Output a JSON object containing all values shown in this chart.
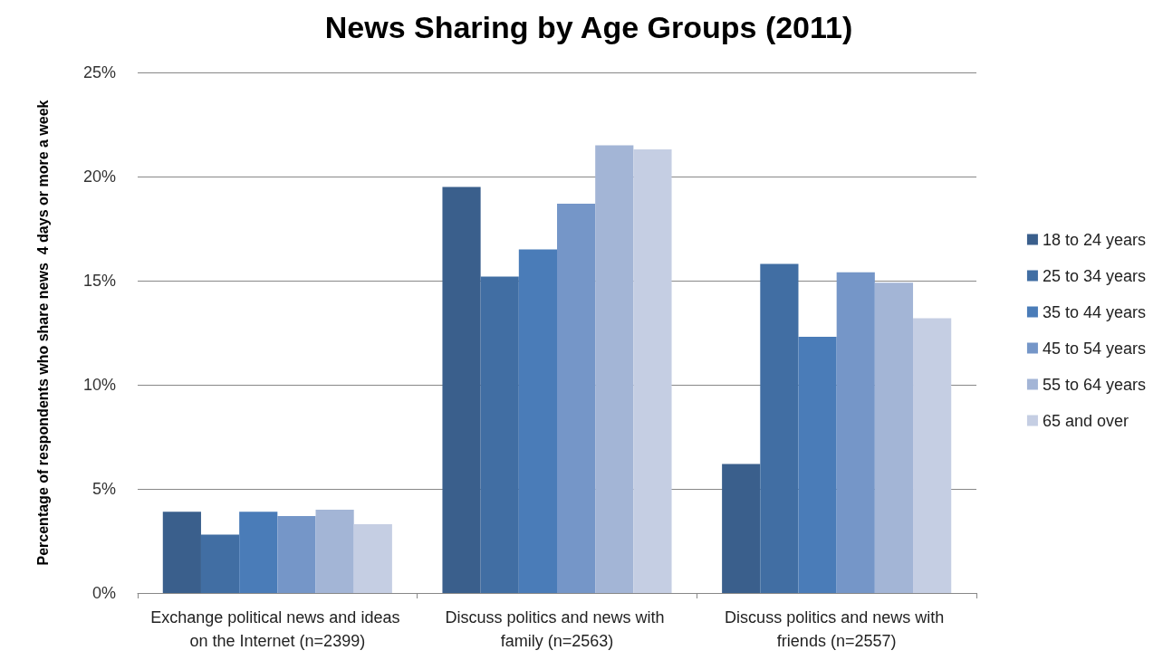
{
  "chart_data": {
    "type": "bar",
    "title": "News Sharing by Age Groups (2011)",
    "ylabel": "Percentage of respondents who share news  4 days or more a week",
    "categories": [
      "Exchange political news and ideas on the Internet (n=2399)",
      "Discuss politics and news with family (n=2563)",
      "Discuss politics and news with friends (n=2557)"
    ],
    "series": [
      {
        "name": "18 to 24 years",
        "color": "#3a5f8c",
        "values": [
          3.9,
          19.5,
          6.2
        ]
      },
      {
        "name": "25 to 34 years",
        "color": "#416ea3",
        "values": [
          2.8,
          15.2,
          15.8
        ]
      },
      {
        "name": "35 to 44 years",
        "color": "#4a7cb8",
        "values": [
          3.9,
          16.5,
          12.3
        ]
      },
      {
        "name": "45 to 54 years",
        "color": "#7596c8",
        "values": [
          3.7,
          18.7,
          15.4
        ]
      },
      {
        "name": "55 to 64 years",
        "color": "#a3b5d6",
        "values": [
          4.0,
          21.5,
          14.9
        ]
      },
      {
        "name": "65 and over",
        "color": "#c5cee3",
        "values": [
          3.3,
          21.3,
          13.2
        ]
      }
    ],
    "ylim": [
      0,
      25
    ],
    "yticks": [
      {
        "value": 0,
        "label": "0%"
      },
      {
        "value": 5,
        "label": "5%"
      },
      {
        "value": 10,
        "label": "10%"
      },
      {
        "value": 15,
        "label": "15%"
      },
      {
        "value": 20,
        "label": "20%"
      },
      {
        "value": 25,
        "label": "25%"
      }
    ],
    "grid": "y",
    "legend": "right"
  }
}
